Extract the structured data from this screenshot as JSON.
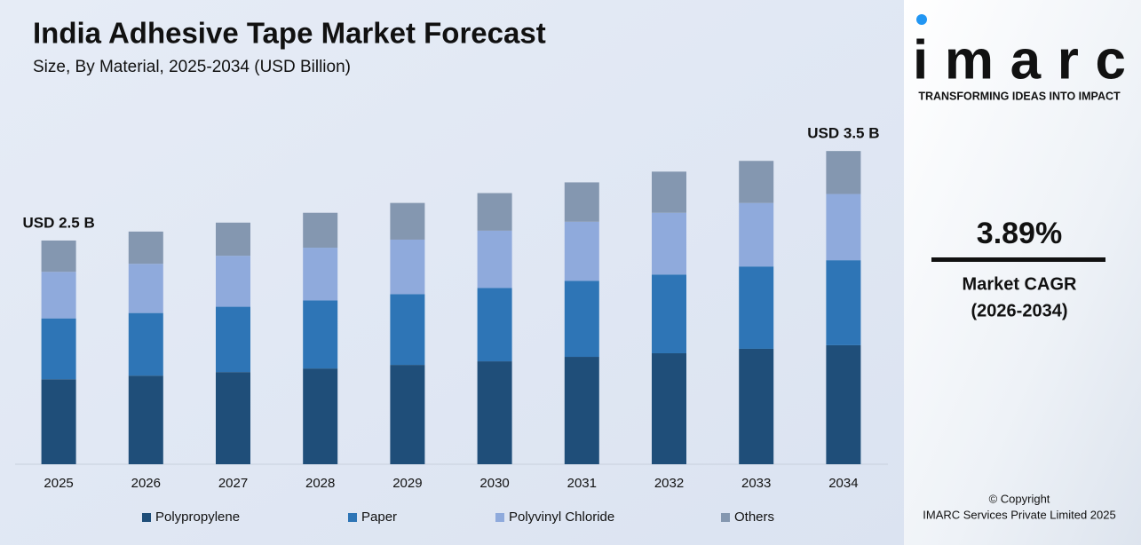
{
  "chart_data": {
    "type": "stacked_bar",
    "title": "India Adhesive Tape Market Forecast",
    "subtitle": "Size, By Material, 2025-2034 (USD Billion)",
    "categories": [
      "2025",
      "2026",
      "2027",
      "2028",
      "2029",
      "2030",
      "2031",
      "2032",
      "2033",
      "2034"
    ],
    "series": [
      {
        "name": "Polypropylene",
        "color": "#1f4e79",
        "values": [
          0.95,
          0.99,
          1.03,
          1.07,
          1.11,
          1.15,
          1.2,
          1.24,
          1.29,
          1.33
        ]
      },
      {
        "name": "Paper",
        "color": "#2e75b6",
        "values": [
          0.68,
          0.7,
          0.73,
          0.76,
          0.79,
          0.82,
          0.85,
          0.88,
          0.92,
          0.95
        ]
      },
      {
        "name": "Polyvinyl Chloride",
        "color": "#8faadc",
        "values": [
          0.52,
          0.55,
          0.57,
          0.59,
          0.61,
          0.64,
          0.66,
          0.69,
          0.71,
          0.74
        ]
      },
      {
        "name": "Others",
        "color": "#8497b0",
        "values": [
          0.35,
          0.36,
          0.37,
          0.39,
          0.41,
          0.42,
          0.44,
          0.46,
          0.47,
          0.48
        ]
      }
    ],
    "annotations": [
      "USD 2.5 B",
      "USD 3.5 B"
    ],
    "ylim": [
      0,
      3.7
    ]
  },
  "brand": {
    "logo": "imarc",
    "tagline": "TRANSFORMING IDEAS INTO IMPACT",
    "cagr": "3.89%",
    "cagr_label": "Market CAGR",
    "cagr_period": "(2026-2034)",
    "copyright": "© Copyright",
    "company": "IMARC Services Private Limited 2025"
  }
}
